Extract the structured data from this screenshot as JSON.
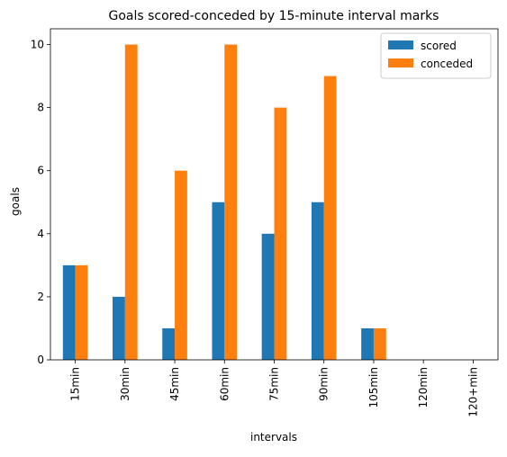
{
  "chart_data": {
    "type": "bar",
    "title": "Goals scored-conceded by 15-minute interval marks",
    "xlabel": "intervals",
    "ylabel": "goals",
    "categories": [
      "15min",
      "30min",
      "45min",
      "60min",
      "75min",
      "90min",
      "105min",
      "120min",
      "120+min"
    ],
    "series": [
      {
        "name": "scored",
        "values": [
          3,
          2,
          1,
          5,
          4,
          5,
          1,
          0,
          0
        ],
        "color": "#1f77b4"
      },
      {
        "name": "conceded",
        "values": [
          3,
          10,
          6,
          10,
          8,
          9,
          1,
          0,
          0
        ],
        "color": "#ff7f0e"
      }
    ],
    "ylim": [
      0,
      10.5
    ],
    "yticks": [
      0,
      2,
      4,
      6,
      8,
      10
    ],
    "legend": "top-right",
    "grid": false
  }
}
